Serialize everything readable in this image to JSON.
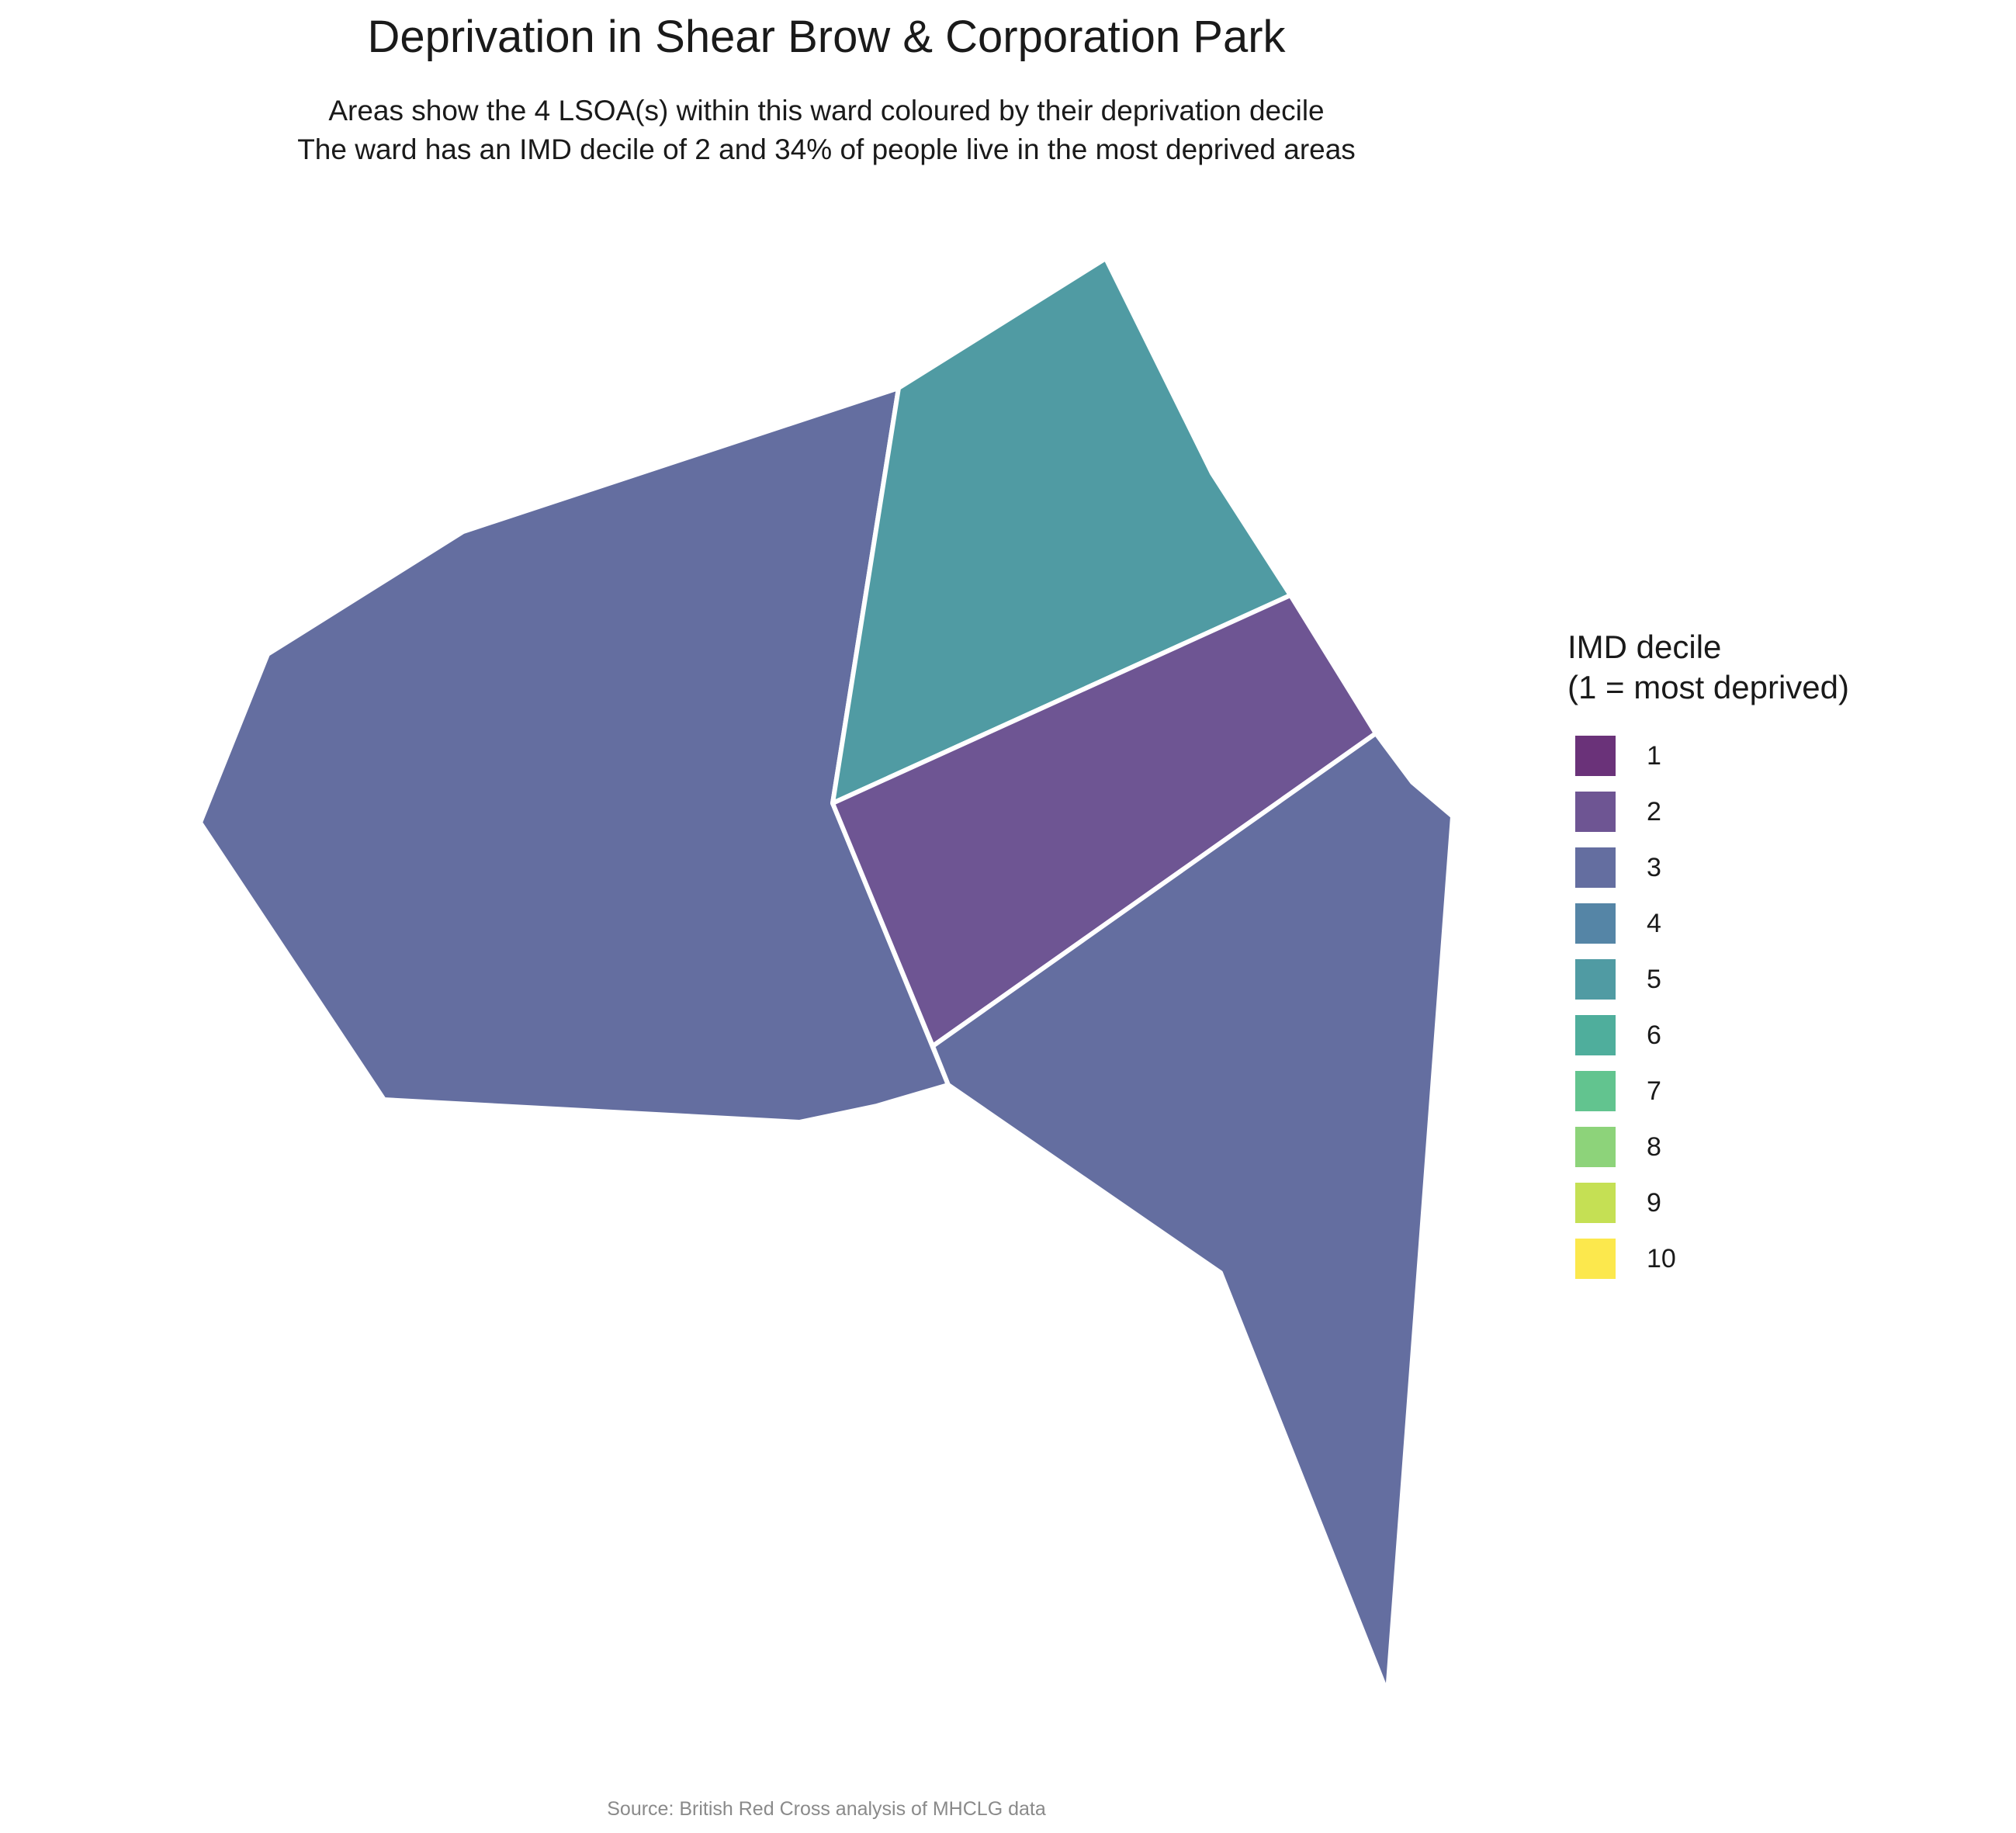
{
  "title": "Deprivation in Shear Brow & Corporation Park",
  "subtitle": [
    "Areas show the 4 LSOA(s) within this ward coloured by their deprivation decile",
    "The ward has an IMD decile of 2 and 34% of people live in the most deprived areas"
  ],
  "legend": {
    "title_lines": [
      "IMD decile",
      "(1 = most deprived)"
    ],
    "items": [
      {
        "label": "1",
        "color": "#6a3279"
      },
      {
        "label": "2",
        "color": "#6e5593"
      },
      {
        "label": "3",
        "color": "#646ea0"
      },
      {
        "label": "4",
        "color": "#5585a6"
      },
      {
        "label": "5",
        "color": "#509ba3"
      },
      {
        "label": "6",
        "color": "#4fae9c"
      },
      {
        "label": "7",
        "color": "#62c48f"
      },
      {
        "label": "8",
        "color": "#8dd37a"
      },
      {
        "label": "9",
        "color": "#c5e054"
      },
      {
        "label": "10",
        "color": "#fce84d"
      }
    ]
  },
  "areas": [
    {
      "name": "lsoa-west",
      "decile": 3
    },
    {
      "name": "lsoa-north",
      "decile": 5
    },
    {
      "name": "lsoa-middle",
      "decile": 2
    },
    {
      "name": "lsoa-south-east",
      "decile": 3
    }
  ],
  "caption": "Source: British Red Cross analysis of MHCLG data"
}
